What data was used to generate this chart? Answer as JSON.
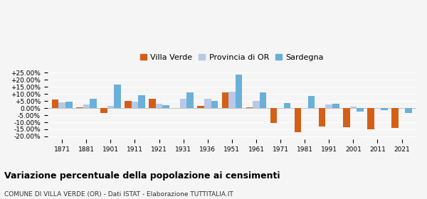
{
  "years": [
    1871,
    1881,
    1901,
    1911,
    1921,
    1931,
    1936,
    1951,
    1961,
    1971,
    1981,
    1991,
    2001,
    2011,
    2021
  ],
  "villa_verde": [
    6.0,
    0.5,
    -3.5,
    5.0,
    6.5,
    0.0,
    1.5,
    11.0,
    0.5,
    -10.5,
    -17.0,
    -13.0,
    -13.5,
    -15.0,
    -14.0
  ],
  "provincia_or": [
    4.0,
    2.5,
    1.5,
    4.5,
    3.0,
    6.5,
    6.5,
    11.5,
    5.0,
    -0.5,
    -0.5,
    2.5,
    1.0,
    -0.5,
    -0.5
  ],
  "sardegna": [
    4.5,
    6.5,
    16.5,
    9.0,
    2.0,
    11.0,
    5.0,
    23.5,
    11.0,
    3.5,
    8.5,
    3.0,
    -2.5,
    -1.5,
    -3.5
  ],
  "color_villa": "#d45f16",
  "color_provincia": "#b8c8e8",
  "color_sardegna": "#6ab0d8",
  "title": "Variazione percentuale della popolazione ai censimenti",
  "subtitle": "COMUNE DI VILLA VERDE (OR) - Dati ISTAT - Elaborazione TUTTITALIA.IT",
  "legend_labels": [
    "Villa Verde",
    "Provincia di OR",
    "Sardegna"
  ],
  "ylim": [
    -22,
    28
  ],
  "yticks": [
    -20,
    -15,
    -10,
    -5,
    0,
    5,
    10,
    15,
    20,
    25
  ],
  "ytick_labels": [
    "-20.00%",
    "-15.00%",
    "-10.00%",
    "-5.00%",
    "0.00%",
    "+5.00%",
    "+10.00%",
    "+15.00%",
    "+20.00%",
    "+25.00%"
  ],
  "background_color": "#f5f5f5",
  "grid_color": "#ffffff"
}
